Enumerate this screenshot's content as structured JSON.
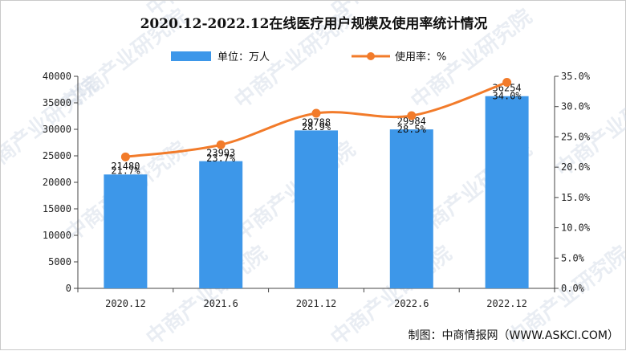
{
  "watermark_text": "中商产业研究院",
  "chart_data": {
    "type": "bar",
    "title": "2020.12-2022.12在线医疗用户规模及使用率统计情况",
    "categories": [
      "2020.12",
      "2021.6",
      "2021.12",
      "2022.6",
      "2022.12"
    ],
    "series": [
      {
        "name": "单位：万人",
        "type": "bar",
        "axis": "left",
        "color": "#3d97e9",
        "values": [
          21480,
          23993,
          29788,
          29984,
          36254
        ],
        "labels": [
          "21480",
          "23993",
          "29788",
          "29984",
          "36254"
        ]
      },
      {
        "name": "使用率：%",
        "type": "line",
        "axis": "right",
        "color": "#f27b2a",
        "values": [
          21.7,
          23.7,
          28.9,
          28.5,
          34.0
        ],
        "labels": [
          "21.7%",
          "23.7%",
          "28.9%",
          "28.5%",
          "34.0%"
        ]
      }
    ],
    "y_left": {
      "min": 0,
      "max": 40000,
      "ticks": [
        "0",
        "5000",
        "10000",
        "15000",
        "20000",
        "25000",
        "30000",
        "35000",
        "40000"
      ]
    },
    "y_right": {
      "min": 0,
      "max": 35,
      "ticks": [
        "0.0%",
        "5.0%",
        "10.0%",
        "15.0%",
        "20.0%",
        "25.0%",
        "30.0%",
        "35.0%"
      ]
    },
    "grid": false,
    "legend_position": "top-center",
    "source": "制图：中商情报网（WWW.ASKCI.COM）"
  }
}
